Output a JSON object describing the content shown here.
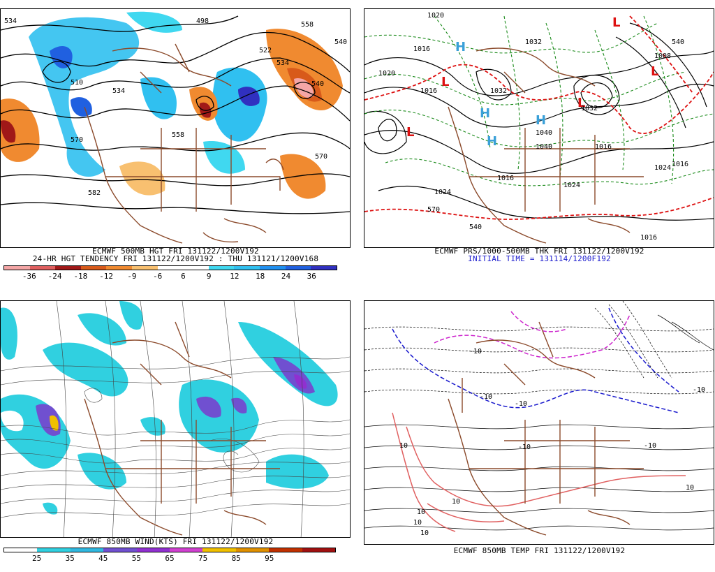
{
  "panels": {
    "p1": {
      "caption1": "ECMWF 500MB HGT FRI 131122/1200V192",
      "caption2": "24-HR HGT TENDENCY FRI 131122/1200V192 : THU 131121/1200V168",
      "colorbar": {
        "colors": [
          "#f4a6a6",
          "#e06060",
          "#a01818",
          "#d85a1a",
          "#f08a30",
          "#f8c070",
          "#ffffff",
          "#ffffff",
          "#40d8f0",
          "#30c0f0",
          "#2090f0",
          "#2060e0",
          "#3030c0"
        ],
        "ticks": [
          "-36",
          "-24",
          "-18",
          "-12",
          "-9",
          "-6",
          "6",
          "9",
          "12",
          "18",
          "24",
          "36"
        ]
      },
      "contour_labels": [
        "534",
        "498",
        "558",
        "540",
        "522",
        "534",
        "540",
        "510",
        "534",
        "570",
        "558",
        "570",
        "582"
      ]
    },
    "p2": {
      "caption1": "ECMWF PRS/1000-500MB THK FRI 131122/1200V192",
      "caption2": "INITIAL TIME = 131114/1200F192",
      "contour_labels": [
        "1020",
        "1032",
        "1016",
        "1016",
        "1020",
        "1032",
        "1040",
        "1040",
        "1032",
        "1024",
        "1016",
        "1024",
        "1016",
        "1024",
        "1016",
        "570",
        "540",
        "1016",
        "1008",
        "540"
      ]
    },
    "p3": {
      "caption1": "ECMWF 850MB WIND(KTS) FRI 131122/1200V192",
      "colorbar": {
        "colors": [
          "#ffffff",
          "#30d0e0",
          "#30b8e0",
          "#7050d0",
          "#9030d0",
          "#d040d0",
          "#f0c000",
          "#e09000",
          "#c03000",
          "#a01010"
        ],
        "ticks": [
          "25",
          "35",
          "45",
          "55",
          "65",
          "75",
          "85",
          "95"
        ]
      }
    },
    "p4": {
      "caption1": "ECMWF 850MB TEMP FRI 131122/1200V192",
      "contour_labels": [
        "10",
        "10",
        "10",
        "10",
        "10",
        "10",
        "-10",
        "-10",
        "-10",
        "-10",
        "-10",
        "-10"
      ]
    }
  }
}
